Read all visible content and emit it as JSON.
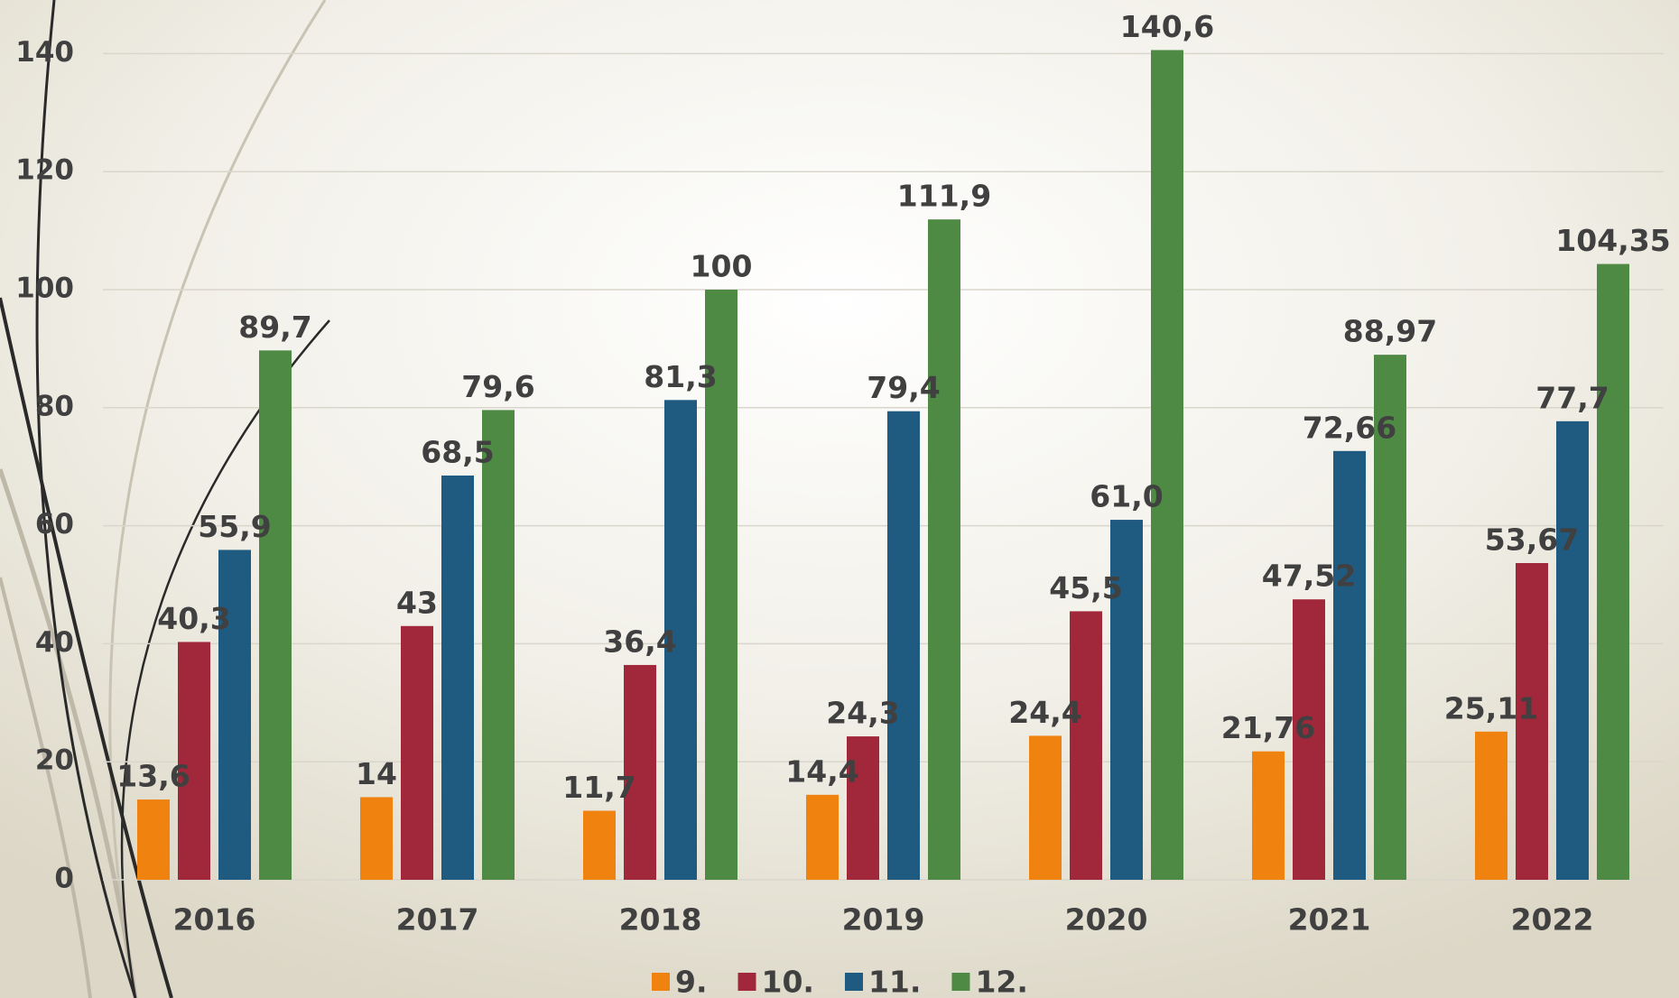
{
  "chart_data": {
    "type": "bar",
    "categories": [
      "2016",
      "2017",
      "2018",
      "2019",
      "2020",
      "2021",
      "2022"
    ],
    "series": [
      {
        "name": "9.",
        "color": "#f0820f",
        "values": [
          13.6,
          14,
          11.7,
          14.4,
          24.4,
          21.76,
          25.11
        ],
        "value_labels": [
          "13,6",
          "14",
          "11,7",
          "14,4",
          "24,4",
          "21,76",
          "25,11"
        ]
      },
      {
        "name": "10.",
        "color": "#a0283a",
        "values": [
          40.3,
          43,
          36.4,
          24.3,
          45.5,
          47.52,
          53.67
        ],
        "value_labels": [
          "40,3",
          "43",
          "36,4",
          "24,3",
          "45,5",
          "47,52",
          "53,67"
        ]
      },
      {
        "name": "11.",
        "color": "#1f5a80",
        "values": [
          55.9,
          68.5,
          81.3,
          79.4,
          61.0,
          72.66,
          77.7
        ],
        "value_labels": [
          "55,9",
          "68,5",
          "81,3",
          "79,4",
          "61,0",
          "72,66",
          "77,7"
        ]
      },
      {
        "name": "12.",
        "color": "#4e8a44",
        "values": [
          89.7,
          79.6,
          100,
          111.9,
          140.6,
          88.97,
          104.35
        ],
        "value_labels": [
          "89,7",
          "79,6",
          "100",
          "111,9",
          "140,6",
          "88,97",
          "104,35"
        ]
      }
    ],
    "ylim": [
      0,
      150
    ],
    "yticks": [
      0,
      20,
      40,
      60,
      80,
      100,
      120,
      140
    ],
    "grid": true,
    "legend": "bottom"
  }
}
